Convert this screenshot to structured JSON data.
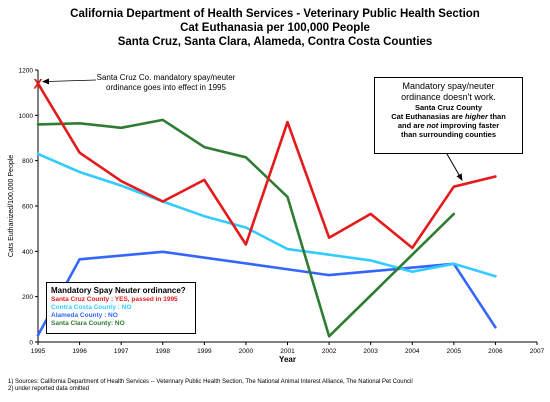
{
  "chart_data": {
    "type": "line",
    "title": "California Department of Health Services - Veterinary Public Health Section",
    "subtitle1": "Cat Euthanasia per 100,000 People",
    "subtitle2": "Santa Cruz, Santa Clara, Alameda, Contra Costa Counties",
    "xlabel": "Year",
    "ylabel": "Cats Euthanized/100,000 People",
    "xlim": [
      1995,
      2007
    ],
    "ylim": [
      0,
      1200
    ],
    "xticks": [
      "1995",
      "1996",
      "1997",
      "1998",
      "1999",
      "2000",
      "2001",
      "2002",
      "2003",
      "2004",
      "2005",
      "2006",
      "2007"
    ],
    "yticks": [
      "0",
      "200",
      "400",
      "600",
      "800",
      "1000",
      "1200"
    ],
    "grid": false,
    "series": [
      {
        "name": "Santa Cruz County",
        "color": "#e41a1c",
        "x": [
          1995,
          1996,
          1997,
          1998,
          1999,
          2000,
          2001,
          2002,
          2003,
          2004,
          2005,
          2006
        ],
        "y": [
          1140,
          835,
          710,
          620,
          715,
          430,
          970,
          460,
          565,
          415,
          685,
          730
        ]
      },
      {
        "name": "Contra Costa County",
        "color": "#33ccff",
        "x": [
          1995,
          1996,
          1997,
          1998,
          1999,
          2000,
          2001,
          2002,
          2003,
          2004,
          2005,
          2006
        ],
        "y": [
          830,
          750,
          690,
          620,
          555,
          505,
          410,
          385,
          360,
          310,
          345,
          290
        ]
      },
      {
        "name": "Alameda County",
        "color": "#3366ff",
        "x": [
          1995,
          1996,
          1998,
          2002,
          2005,
          2006
        ],
        "y": [
          30,
          365,
          398,
          295,
          345,
          65
        ]
      },
      {
        "name": "Santa Clara County",
        "color": "#2e7d32",
        "x": [
          1995,
          1996,
          1997,
          1998,
          1999,
          2000,
          2001,
          2002,
          2005
        ],
        "y": [
          960,
          965,
          945,
          980,
          860,
          815,
          640,
          25,
          565
        ]
      }
    ]
  },
  "annotations": {
    "ordinance_note": "Santa Cruz Co. mandatory spay/neuter ordinance goes into effect in 1995",
    "ordinance_marker": "X",
    "callout_line1": "Mandatory spay/neuter",
    "callout_line2": "ordinance doesn't work.",
    "callout_line3": "Santa Cruz County",
    "callout_line4a": "Cat Euthanasias are ",
    "callout_line4b": "higher",
    "callout_line4c": " than",
    "callout_line5a": "and are ",
    "callout_line5b": "not",
    "callout_line5c": " improving faster",
    "callout_line6": "than surrounding counties"
  },
  "legend": {
    "title": "Mandatory Spay Neuter ordinance?",
    "items": [
      {
        "text": "Santa Cruz County : YES, passed in 1995",
        "color": "#e41a1c"
      },
      {
        "text": "Contra Costa County : NO",
        "color": "#33ccff"
      },
      {
        "text": "Alameda County : NO",
        "color": "#3366ff"
      },
      {
        "text": "Santa Clara County: NO",
        "color": "#2e7d32"
      }
    ]
  },
  "footnotes": {
    "note1": "1) Sources: California Department of Health Services -- Veterinary Public Health Section, The National Animal Interest Alliance, The National Pet Council",
    "note2": "2) under reported data omitted"
  }
}
